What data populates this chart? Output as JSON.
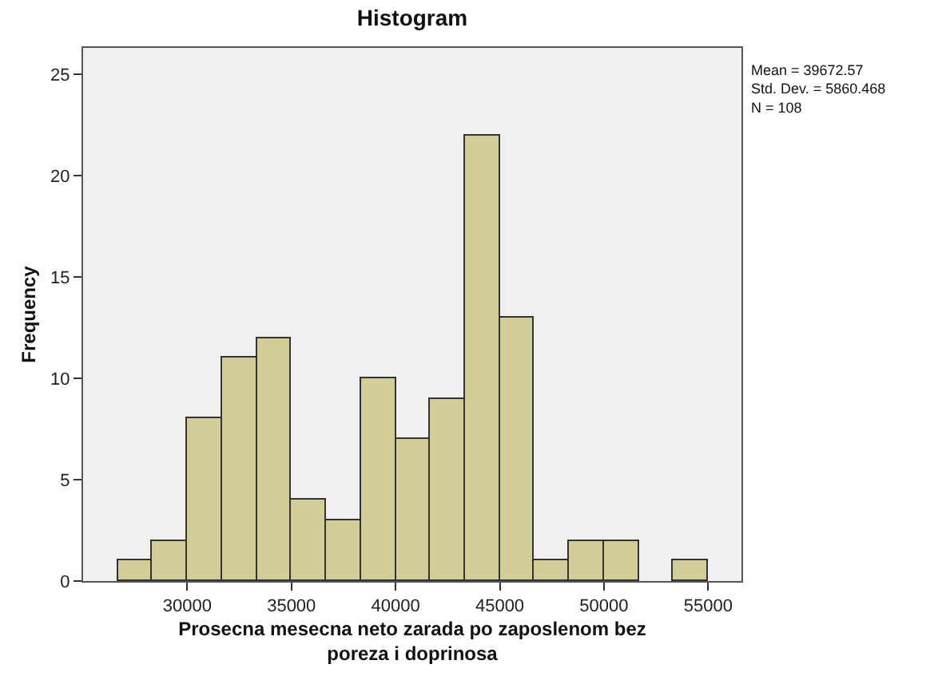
{
  "chart_data": {
    "type": "histogram",
    "title": "Histogram",
    "xlabel": "Prosecna mesecna neto zarada po zaposlenom bez poreza i doprinosa",
    "ylabel": "Frequency",
    "bins": [
      26667,
      28333,
      30000,
      31667,
      33333,
      35000,
      36667,
      38333,
      40000,
      41667,
      43333,
      45000,
      46667,
      48333,
      50000,
      51667,
      53333,
      55000
    ],
    "values": [
      1,
      2,
      8,
      11,
      12,
      4,
      3,
      10,
      7,
      9,
      22,
      13,
      1,
      2,
      2,
      0,
      1
    ],
    "color": "#d3ce97",
    "xlim": [
      25000,
      56600
    ],
    "xticks": [
      30000,
      35000,
      40000,
      45000,
      50000,
      55000
    ],
    "ylim": [
      0,
      26.3
    ],
    "yticks": [
      0,
      5,
      10,
      15,
      20,
      25
    ],
    "annotations": [
      "Mean = 39672.57\nStd. Dev. = 5860.468\nN = 108"
    ]
  }
}
